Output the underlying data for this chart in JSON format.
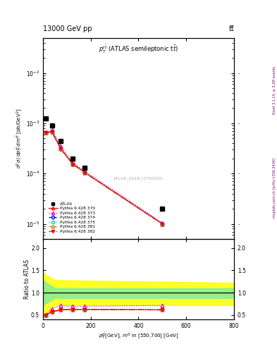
{
  "title_left": "13000 GeV pp",
  "title_right": "tt̅",
  "main_title": "$p_T^{t\\bar{t}}$ (ATLAS semileptonic t$\\bar{t}$)",
  "ylabel_main": "$d^2\\sigma\\,/\\,dp_T^{t\\bar{t}}\\,dm^{t\\bar{t}}$ [pb/GeV$^2$]",
  "ylabel_ratio": "Ratio to ATLAS",
  "xlabel": "$p_T^{t\\bar{t}}$[GeV], $m^{t\\bar{t}}$ in [550,700] [GeV]",
  "watermark": "ATLAS_2019_I1750330",
  "right_label": "mcplots.cern.ch [arXiv:1306.3436]",
  "right_label2": "Rivet 3.1.10, ≥ 3.2M events",
  "atlas_x": [
    12.5,
    37.5,
    75.0,
    125.0,
    175.0,
    500.0
  ],
  "atlas_y": [
    0.00125,
    0.0009,
    0.00045,
    0.0002,
    0.00013,
    2e-05
  ],
  "mc_x": [
    12.5,
    37.5,
    75.0,
    125.0,
    175.0,
    500.0
  ],
  "py370_y": [
    0.00065,
    0.00068,
    0.00031,
    0.000155,
    0.000105,
    1e-05
  ],
  "py373_y": [
    0.00065,
    0.00075,
    0.00035,
    0.000165,
    0.000112,
    1.05e-05
  ],
  "py374_y": [
    0.00065,
    0.00068,
    0.00031,
    0.000155,
    0.000105,
    1e-05
  ],
  "py375_y": [
    0.00065,
    0.00068,
    0.00031,
    0.000155,
    0.000105,
    1e-05
  ],
  "py381_y": [
    0.00065,
    0.00068,
    0.00031,
    0.000155,
    0.000105,
    1e-05
  ],
  "py382_y": [
    0.00065,
    0.00068,
    0.00031,
    0.000155,
    0.000105,
    1e-05
  ],
  "ratio_x": [
    12.5,
    37.5,
    75.0,
    125.0,
    175.0,
    500.0
  ],
  "ratio_py370": [
    0.5,
    0.575,
    0.615,
    0.625,
    0.625,
    0.615
  ],
  "ratio_py373": [
    0.5,
    0.645,
    0.71,
    0.695,
    0.695,
    0.715
  ],
  "ratio_py374": [
    0.5,
    0.575,
    0.615,
    0.625,
    0.625,
    0.615
  ],
  "ratio_py375": [
    0.5,
    0.575,
    0.615,
    0.625,
    0.625,
    0.615
  ],
  "ratio_py381": [
    0.5,
    0.575,
    0.615,
    0.625,
    0.625,
    0.615
  ],
  "ratio_py382": [
    0.5,
    0.575,
    0.615,
    0.625,
    0.625,
    0.615
  ],
  "xlim": [
    0,
    800
  ],
  "ylim_main": [
    5e-06,
    0.05
  ],
  "ylim_ratio": [
    0.4,
    2.2
  ],
  "yticks_ratio": [
    0.5,
    1.0,
    1.5,
    2.0
  ],
  "xticks": [
    0,
    200,
    400,
    600,
    800
  ],
  "colors": {
    "py370": "#ff0000",
    "py373": "#cc00cc",
    "py374": "#0000ff",
    "py375": "#00cccc",
    "py381": "#cc8800",
    "py382": "#ff0000"
  },
  "bg_color": "#ffffff"
}
